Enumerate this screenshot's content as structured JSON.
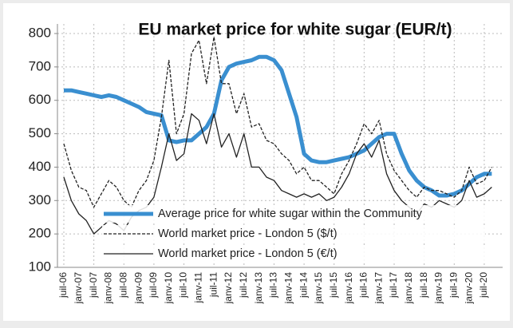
{
  "chart_data": {
    "type": "line",
    "title": "EU market price for white sugar (EUR/t)",
    "categories": [
      "juil-06",
      null,
      "janv-07",
      null,
      "juil-07",
      null,
      "janv-08",
      null,
      "juil-08",
      null,
      "janv-09",
      null,
      "juil-09",
      null,
      "janv-10",
      null,
      "juil-10",
      null,
      "janv-11",
      null,
      "juil-11",
      null,
      "janv-12",
      null,
      "juil-12",
      null,
      "janv-13",
      null,
      "juil-13",
      null,
      "janv-14",
      null,
      "juil-14",
      null,
      "janv-15",
      null,
      "juil-15",
      null,
      "janv-16",
      null,
      "juil-16",
      null,
      "janv-17",
      null,
      "juil-17",
      null,
      "janv-18",
      null,
      "juil-18",
      null,
      "janv-19",
      null,
      "juil-19",
      null,
      "janv-20",
      null,
      "juil-20",
      null
    ],
    "series": [
      {
        "name": "Average price for white sugar within the Community",
        "color": "#3a8fd0",
        "line_style": "solid",
        "width": 5,
        "values": [
          630,
          630,
          625,
          620,
          615,
          610,
          615,
          610,
          600,
          590,
          580,
          565,
          560,
          555,
          480,
          475,
          480,
          480,
          500,
          520,
          560,
          660,
          700,
          710,
          715,
          720,
          730,
          730,
          720,
          690,
          620,
          550,
          440,
          420,
          415,
          415,
          420,
          425,
          430,
          440,
          450,
          470,
          490,
          500,
          500,
          440,
          390,
          360,
          340,
          330,
          315,
          315,
          320,
          330,
          350,
          370,
          380,
          380
        ]
      },
      {
        "name": "World market price - London 5 ($/t)",
        "color": "#222222",
        "line_style": "dashed",
        "width": 1.3,
        "values": [
          470,
          390,
          340,
          330,
          280,
          320,
          360,
          340,
          300,
          280,
          330,
          360,
          420,
          550,
          720,
          500,
          560,
          740,
          780,
          650,
          790,
          650,
          650,
          560,
          620,
          520,
          530,
          480,
          470,
          440,
          420,
          380,
          400,
          360,
          360,
          340,
          320,
          380,
          420,
          470,
          530,
          500,
          540,
          440,
          390,
          360,
          330,
          310,
          340,
          330,
          330,
          320,
          310,
          330,
          400,
          350,
          360,
          400
        ]
      },
      {
        "name": "World market price - London 5 (€/t)",
        "color": "#222222",
        "line_style": "solid",
        "width": 1.3,
        "values": [
          370,
          300,
          260,
          240,
          200,
          220,
          240,
          230,
          210,
          250,
          270,
          280,
          310,
          400,
          500,
          420,
          440,
          560,
          540,
          470,
          560,
          460,
          500,
          430,
          500,
          400,
          400,
          370,
          360,
          330,
          320,
          310,
          320,
          310,
          320,
          300,
          310,
          340,
          380,
          440,
          470,
          430,
          480,
          380,
          330,
          300,
          280,
          260,
          290,
          280,
          300,
          290,
          280,
          300,
          360,
          310,
          320,
          340
        ]
      }
    ],
    "ylim": [
      100,
      800
    ],
    "yticks": [
      100,
      200,
      300,
      400,
      500,
      600,
      700,
      800
    ],
    "grid": true,
    "legend": "bottom"
  }
}
